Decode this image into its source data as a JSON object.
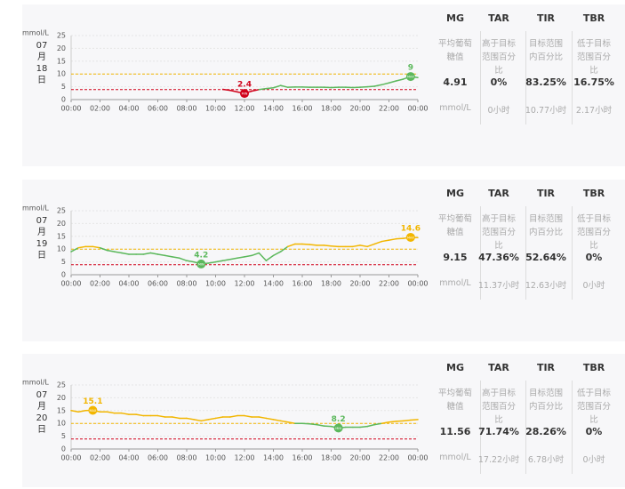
{
  "chart_data": [
    {
      "type": "line",
      "date_label": [
        "07",
        "月",
        "18",
        "日"
      ],
      "y_label": "mmol/L",
      "ylim": [
        0,
        25
      ],
      "yticks": [
        0,
        5,
        10,
        15,
        20,
        25
      ],
      "xlim": [
        0,
        24
      ],
      "xticks": [
        {
          "value": 0,
          "label": "00:00"
        },
        {
          "value": 2,
          "label": "02:00"
        },
        {
          "value": 4,
          "label": "04:00"
        },
        {
          "value": 6,
          "label": "06:00"
        },
        {
          "value": 8,
          "label": "08:00"
        },
        {
          "value": 10,
          "label": "10:00"
        },
        {
          "value": 12,
          "label": "12:00"
        },
        {
          "value": 14,
          "label": "14:00"
        },
        {
          "value": 16,
          "label": "16:00"
        },
        {
          "value": 18,
          "label": "18:00"
        },
        {
          "value": 20,
          "label": "20:00"
        },
        {
          "value": 22,
          "label": "22:00"
        },
        {
          "value": 24,
          "label": "00:00"
        }
      ],
      "target_range": [
        3.9,
        10
      ],
      "colors": {
        "high": "#f2b600",
        "in": "#5cb85c",
        "low": "#d0021b"
      },
      "x": [
        0,
        0.5,
        1,
        1.5,
        2,
        2.5,
        3,
        3.5,
        4,
        4.5,
        5,
        5.5,
        6,
        6.5,
        7,
        7.5,
        8,
        8.5,
        9,
        9.5,
        10,
        10.5,
        11,
        11.5,
        12,
        12.5,
        13,
        13.5,
        14,
        14.5,
        15,
        15.5,
        16,
        16.5,
        17,
        17.5,
        18,
        18.5,
        19,
        19.5,
        20,
        20.5,
        21,
        21.5,
        22,
        22.5,
        23,
        23.5,
        24
      ],
      "values": [
        null,
        null,
        null,
        null,
        null,
        null,
        null,
        null,
        null,
        null,
        null,
        null,
        null,
        null,
        null,
        null,
        null,
        null,
        null,
        null,
        null,
        4,
        3.6,
        3,
        2.4,
        3.3,
        3.9,
        4.3,
        4.6,
        5.5,
        4.8,
        4.9,
        4.9,
        4.8,
        4.8,
        4.8,
        4.7,
        4.8,
        4.8,
        4.7,
        4.8,
        5,
        5.2,
        5.8,
        6.5,
        7.3,
        8,
        9,
        8.6
      ],
      "markers": [
        {
          "kind": "MIN",
          "x": 12,
          "value": 2.4
        },
        {
          "kind": "MAX",
          "x": 23.5,
          "value": 9
        }
      ],
      "stats": {
        "headers": [
          "MG",
          "TAR",
          "TIR",
          "TBR"
        ],
        "descriptions": [
          "平均葡萄糖值",
          "高于目标范围百分比",
          "目标范围内百分比",
          "低于目标范围百分比"
        ],
        "values": [
          "4.91",
          "0%",
          "83.25%",
          "16.75%"
        ],
        "units": [
          "mmol/L",
          "0小时",
          "10.77小时",
          "2.17小时"
        ]
      }
    },
    {
      "type": "line",
      "date_label": [
        "07",
        "月",
        "19",
        "日"
      ],
      "y_label": "mmol/L",
      "ylim": [
        0,
        25
      ],
      "yticks": [
        0,
        5,
        10,
        15,
        20,
        25
      ],
      "xlim": [
        0,
        24
      ],
      "xticks": [
        {
          "value": 0,
          "label": "00:00"
        },
        {
          "value": 2,
          "label": "02:00"
        },
        {
          "value": 4,
          "label": "04:00"
        },
        {
          "value": 6,
          "label": "06:00"
        },
        {
          "value": 8,
          "label": "08:00"
        },
        {
          "value": 10,
          "label": "10:00"
        },
        {
          "value": 12,
          "label": "12:00"
        },
        {
          "value": 14,
          "label": "14:00"
        },
        {
          "value": 16,
          "label": "16:00"
        },
        {
          "value": 18,
          "label": "18:00"
        },
        {
          "value": 20,
          "label": "20:00"
        },
        {
          "value": 22,
          "label": "22:00"
        },
        {
          "value": 24,
          "label": "00:00"
        }
      ],
      "target_range": [
        3.9,
        10
      ],
      "colors": {
        "high": "#f2b600",
        "in": "#5cb85c",
        "low": "#d0021b"
      },
      "x": [
        0,
        0.5,
        1,
        1.5,
        2,
        2.5,
        3,
        3.5,
        4,
        4.5,
        5,
        5.5,
        6,
        6.5,
        7,
        7.5,
        8,
        8.5,
        9,
        9.5,
        10,
        10.5,
        11,
        11.5,
        12,
        12.5,
        13,
        13.5,
        14,
        14.5,
        15,
        15.5,
        16,
        16.5,
        17,
        17.5,
        18,
        18.5,
        19,
        19.5,
        20,
        20.5,
        21,
        21.5,
        22,
        22.5,
        23,
        23.5,
        24
      ],
      "values": [
        9,
        10.5,
        11,
        11,
        10.5,
        9.5,
        9,
        8.5,
        8,
        8,
        8,
        8.5,
        8,
        7.5,
        7,
        6.5,
        5.5,
        5,
        4.2,
        4.5,
        5,
        5.5,
        6,
        6.5,
        7,
        7.5,
        8.5,
        5.5,
        7.5,
        9,
        11,
        12,
        12,
        11.8,
        11.5,
        11.5,
        11.2,
        11,
        11,
        11,
        11.5,
        11,
        12,
        13,
        13.5,
        14,
        14.2,
        14.6,
        14.5
      ],
      "markers": [
        {
          "kind": "MIN",
          "x": 9,
          "value": 4.2
        },
        {
          "kind": "MAX",
          "x": 23.5,
          "value": 14.6
        }
      ],
      "stats": {
        "headers": [
          "MG",
          "TAR",
          "TIR",
          "TBR"
        ],
        "descriptions": [
          "平均葡萄糖值",
          "高于目标范围百分比",
          "目标范围内百分比",
          "低于目标范围百分比"
        ],
        "values": [
          "9.15",
          "47.36%",
          "52.64%",
          "0%"
        ],
        "units": [
          "mmol/L",
          "11.37小时",
          "12.63小时",
          "0小时"
        ]
      }
    },
    {
      "type": "line",
      "date_label": [
        "07",
        "月",
        "20",
        "日"
      ],
      "y_label": "mmol/L",
      "ylim": [
        0,
        25
      ],
      "yticks": [
        0,
        5,
        10,
        15,
        20,
        25
      ],
      "xlim": [
        0,
        24
      ],
      "xticks": [
        {
          "value": 0,
          "label": "00:00"
        },
        {
          "value": 2,
          "label": "02:00"
        },
        {
          "value": 4,
          "label": "04:00"
        },
        {
          "value": 6,
          "label": "06:00"
        },
        {
          "value": 8,
          "label": "08:00"
        },
        {
          "value": 10,
          "label": "10:00"
        },
        {
          "value": 12,
          "label": "12:00"
        },
        {
          "value": 14,
          "label": "14:00"
        },
        {
          "value": 16,
          "label": "16:00"
        },
        {
          "value": 18,
          "label": "18:00"
        },
        {
          "value": 20,
          "label": "20:00"
        },
        {
          "value": 22,
          "label": "22:00"
        },
        {
          "value": 24,
          "label": "00:00"
        }
      ],
      "target_range": [
        3.9,
        10
      ],
      "colors": {
        "high": "#f2b600",
        "in": "#5cb85c",
        "low": "#d0021b"
      },
      "x": [
        0,
        0.5,
        1,
        1.5,
        2,
        2.5,
        3,
        3.5,
        4,
        4.5,
        5,
        5.5,
        6,
        6.5,
        7,
        7.5,
        8,
        8.5,
        9,
        9.5,
        10,
        10.5,
        11,
        11.5,
        12,
        12.5,
        13,
        13.5,
        14,
        14.5,
        15,
        15.5,
        16,
        16.5,
        17,
        17.5,
        18,
        18.5,
        19,
        19.5,
        20,
        20.5,
        21,
        21.5,
        22,
        22.5,
        23,
        23.5,
        24
      ],
      "values": [
        15,
        14.5,
        15,
        15.1,
        14.5,
        14.5,
        14,
        14,
        13.5,
        13.5,
        13,
        13,
        13,
        12.5,
        12.5,
        12,
        12,
        11.5,
        11,
        11.5,
        12,
        12.5,
        12.5,
        13,
        13,
        12.5,
        12.5,
        12,
        11.5,
        11,
        10.5,
        10,
        10,
        9.8,
        9.5,
        9,
        8.8,
        8.2,
        8.5,
        8.5,
        8.5,
        8.8,
        9.5,
        10,
        10.5,
        10.8,
        11,
        11.3,
        11.5
      ],
      "markers": [
        {
          "kind": "MAX",
          "x": 1.5,
          "value": 15.1
        },
        {
          "kind": "MIN",
          "x": 18.5,
          "value": 8.2
        }
      ],
      "stats": {
        "headers": [
          "MG",
          "TAR",
          "TIR",
          "TBR"
        ],
        "descriptions": [
          "平均葡萄糖值",
          "高于目标范围百分比",
          "目标范围内百分比",
          "低于目标范围百分比"
        ],
        "values": [
          "11.56",
          "71.74%",
          "28.26%",
          "0%"
        ],
        "units": [
          "mmol/L",
          "17.22小时",
          "6.78小时",
          "0小时"
        ]
      }
    }
  ]
}
